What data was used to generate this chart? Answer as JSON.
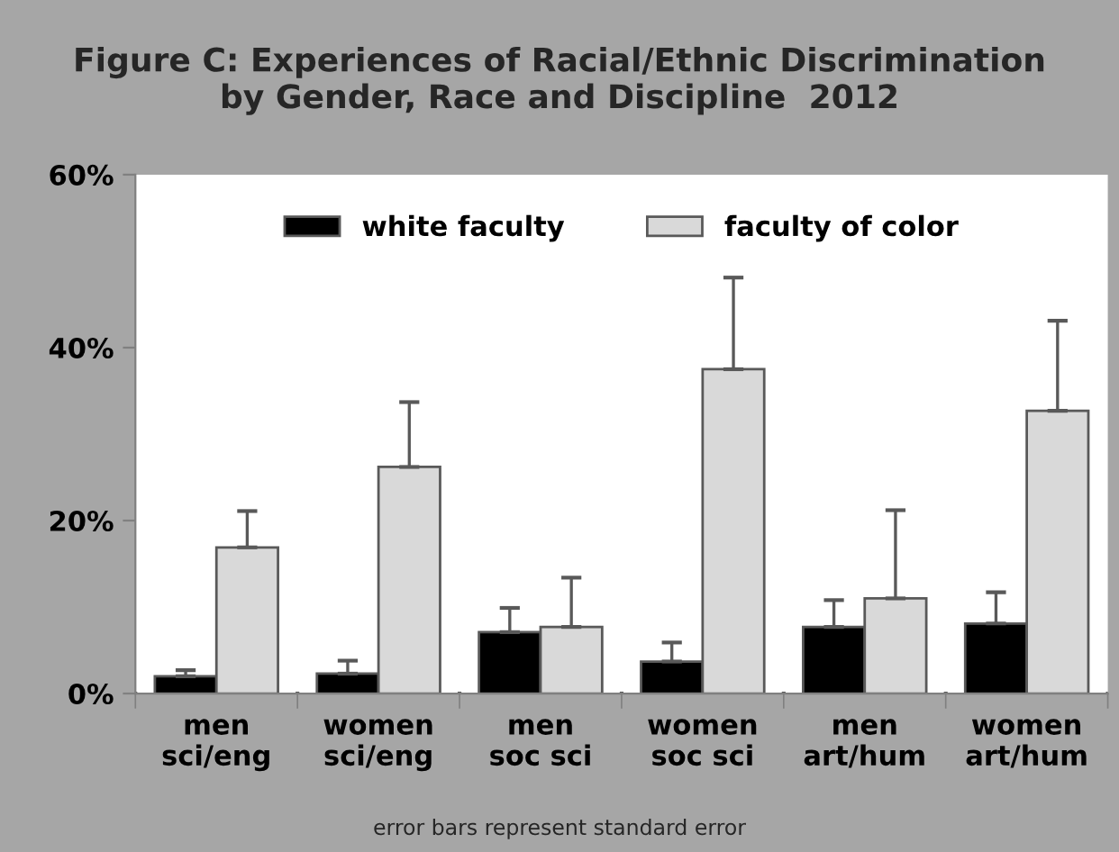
{
  "chart_data": {
    "type": "bar",
    "title": "Figure C: Experiences of Racial/Ethnic Discrimination\nby Gender, Race and Discipline  2012",
    "categories": [
      "men\nsci/eng",
      "women\nsci/eng",
      "men\nsoc sci",
      "women\nsoc sci",
      "men\nart/hum",
      "women\nart/hum"
    ],
    "series": [
      {
        "name": "white faculty",
        "color": "#000000",
        "values": [
          2.0,
          2.3,
          7.1,
          3.7,
          7.7,
          8.1
        ],
        "errors": [
          [
            2.0,
            2.7
          ],
          [
            2.3,
            3.8
          ],
          [
            7.1,
            9.9
          ],
          [
            3.7,
            5.9
          ],
          [
            7.7,
            10.8
          ],
          [
            8.1,
            11.7
          ]
        ]
      },
      {
        "name": "faculty of color",
        "color": "#d9d9d9",
        "values": [
          16.9,
          26.2,
          7.7,
          37.5,
          11.0,
          32.7
        ],
        "errors": [
          [
            16.9,
            21.1
          ],
          [
            26.2,
            33.7
          ],
          [
            7.7,
            13.4
          ],
          [
            37.5,
            48.1
          ],
          [
            11.0,
            21.2
          ],
          [
            32.7,
            43.1
          ]
        ]
      }
    ],
    "ylim": [
      0,
      60
    ],
    "yticks": [
      {
        "value": 0,
        "label": "0%"
      },
      {
        "value": 20,
        "label": "20%"
      },
      {
        "value": 40,
        "label": "40%"
      },
      {
        "value": 60,
        "label": "60%"
      }
    ],
    "grid": false,
    "legend": "top",
    "annotations": [
      "error bars represent standard error"
    ]
  }
}
